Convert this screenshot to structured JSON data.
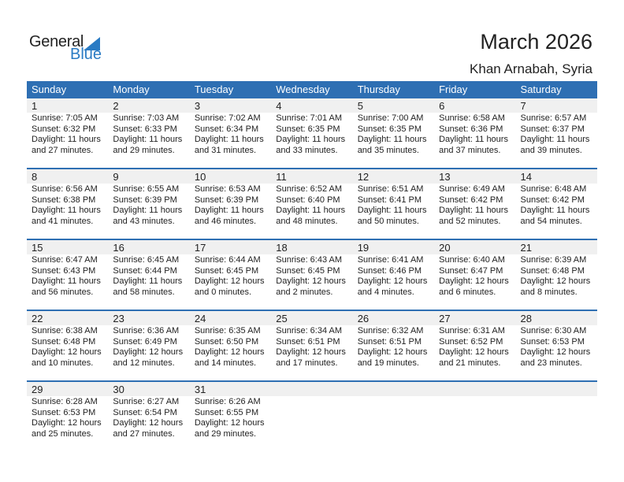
{
  "logo": {
    "general": "General",
    "blue": "Blue"
  },
  "title": "March 2026",
  "location": "Khan Arnabah, Syria",
  "colors": {
    "header": "#2e6fb3",
    "logo_blue": "#2a7bc4",
    "date_strip": "#f0f0f0"
  },
  "weekdays": [
    "Sunday",
    "Monday",
    "Tuesday",
    "Wednesday",
    "Thursday",
    "Friday",
    "Saturday"
  ],
  "days": [
    {
      "d": "1",
      "sunrise": "Sunrise: 7:05 AM",
      "sunset": "Sunset: 6:32 PM",
      "day1": "Daylight: 11 hours",
      "day2": "and 27 minutes."
    },
    {
      "d": "2",
      "sunrise": "Sunrise: 7:03 AM",
      "sunset": "Sunset: 6:33 PM",
      "day1": "Daylight: 11 hours",
      "day2": "and 29 minutes."
    },
    {
      "d": "3",
      "sunrise": "Sunrise: 7:02 AM",
      "sunset": "Sunset: 6:34 PM",
      "day1": "Daylight: 11 hours",
      "day2": "and 31 minutes."
    },
    {
      "d": "4",
      "sunrise": "Sunrise: 7:01 AM",
      "sunset": "Sunset: 6:35 PM",
      "day1": "Daylight: 11 hours",
      "day2": "and 33 minutes."
    },
    {
      "d": "5",
      "sunrise": "Sunrise: 7:00 AM",
      "sunset": "Sunset: 6:35 PM",
      "day1": "Daylight: 11 hours",
      "day2": "and 35 minutes."
    },
    {
      "d": "6",
      "sunrise": "Sunrise: 6:58 AM",
      "sunset": "Sunset: 6:36 PM",
      "day1": "Daylight: 11 hours",
      "day2": "and 37 minutes."
    },
    {
      "d": "7",
      "sunrise": "Sunrise: 6:57 AM",
      "sunset": "Sunset: 6:37 PM",
      "day1": "Daylight: 11 hours",
      "day2": "and 39 minutes."
    },
    {
      "d": "8",
      "sunrise": "Sunrise: 6:56 AM",
      "sunset": "Sunset: 6:38 PM",
      "day1": "Daylight: 11 hours",
      "day2": "and 41 minutes."
    },
    {
      "d": "9",
      "sunrise": "Sunrise: 6:55 AM",
      "sunset": "Sunset: 6:39 PM",
      "day1": "Daylight: 11 hours",
      "day2": "and 43 minutes."
    },
    {
      "d": "10",
      "sunrise": "Sunrise: 6:53 AM",
      "sunset": "Sunset: 6:39 PM",
      "day1": "Daylight: 11 hours",
      "day2": "and 46 minutes."
    },
    {
      "d": "11",
      "sunrise": "Sunrise: 6:52 AM",
      "sunset": "Sunset: 6:40 PM",
      "day1": "Daylight: 11 hours",
      "day2": "and 48 minutes."
    },
    {
      "d": "12",
      "sunrise": "Sunrise: 6:51 AM",
      "sunset": "Sunset: 6:41 PM",
      "day1": "Daylight: 11 hours",
      "day2": "and 50 minutes."
    },
    {
      "d": "13",
      "sunrise": "Sunrise: 6:49 AM",
      "sunset": "Sunset: 6:42 PM",
      "day1": "Daylight: 11 hours",
      "day2": "and 52 minutes."
    },
    {
      "d": "14",
      "sunrise": "Sunrise: 6:48 AM",
      "sunset": "Sunset: 6:42 PM",
      "day1": "Daylight: 11 hours",
      "day2": "and 54 minutes."
    },
    {
      "d": "15",
      "sunrise": "Sunrise: 6:47 AM",
      "sunset": "Sunset: 6:43 PM",
      "day1": "Daylight: 11 hours",
      "day2": "and 56 minutes."
    },
    {
      "d": "16",
      "sunrise": "Sunrise: 6:45 AM",
      "sunset": "Sunset: 6:44 PM",
      "day1": "Daylight: 11 hours",
      "day2": "and 58 minutes."
    },
    {
      "d": "17",
      "sunrise": "Sunrise: 6:44 AM",
      "sunset": "Sunset: 6:45 PM",
      "day1": "Daylight: 12 hours",
      "day2": "and 0 minutes."
    },
    {
      "d": "18",
      "sunrise": "Sunrise: 6:43 AM",
      "sunset": "Sunset: 6:45 PM",
      "day1": "Daylight: 12 hours",
      "day2": "and 2 minutes."
    },
    {
      "d": "19",
      "sunrise": "Sunrise: 6:41 AM",
      "sunset": "Sunset: 6:46 PM",
      "day1": "Daylight: 12 hours",
      "day2": "and 4 minutes."
    },
    {
      "d": "20",
      "sunrise": "Sunrise: 6:40 AM",
      "sunset": "Sunset: 6:47 PM",
      "day1": "Daylight: 12 hours",
      "day2": "and 6 minutes."
    },
    {
      "d": "21",
      "sunrise": "Sunrise: 6:39 AM",
      "sunset": "Sunset: 6:48 PM",
      "day1": "Daylight: 12 hours",
      "day2": "and 8 minutes."
    },
    {
      "d": "22",
      "sunrise": "Sunrise: 6:38 AM",
      "sunset": "Sunset: 6:48 PM",
      "day1": "Daylight: 12 hours",
      "day2": "and 10 minutes."
    },
    {
      "d": "23",
      "sunrise": "Sunrise: 6:36 AM",
      "sunset": "Sunset: 6:49 PM",
      "day1": "Daylight: 12 hours",
      "day2": "and 12 minutes."
    },
    {
      "d": "24",
      "sunrise": "Sunrise: 6:35 AM",
      "sunset": "Sunset: 6:50 PM",
      "day1": "Daylight: 12 hours",
      "day2": "and 14 minutes."
    },
    {
      "d": "25",
      "sunrise": "Sunrise: 6:34 AM",
      "sunset": "Sunset: 6:51 PM",
      "day1": "Daylight: 12 hours",
      "day2": "and 17 minutes."
    },
    {
      "d": "26",
      "sunrise": "Sunrise: 6:32 AM",
      "sunset": "Sunset: 6:51 PM",
      "day1": "Daylight: 12 hours",
      "day2": "and 19 minutes."
    },
    {
      "d": "27",
      "sunrise": "Sunrise: 6:31 AM",
      "sunset": "Sunset: 6:52 PM",
      "day1": "Daylight: 12 hours",
      "day2": "and 21 minutes."
    },
    {
      "d": "28",
      "sunrise": "Sunrise: 6:30 AM",
      "sunset": "Sunset: 6:53 PM",
      "day1": "Daylight: 12 hours",
      "day2": "and 23 minutes."
    },
    {
      "d": "29",
      "sunrise": "Sunrise: 6:28 AM",
      "sunset": "Sunset: 6:53 PM",
      "day1": "Daylight: 12 hours",
      "day2": "and 25 minutes."
    },
    {
      "d": "30",
      "sunrise": "Sunrise: 6:27 AM",
      "sunset": "Sunset: 6:54 PM",
      "day1": "Daylight: 12 hours",
      "day2": "and 27 minutes."
    },
    {
      "d": "31",
      "sunrise": "Sunrise: 6:26 AM",
      "sunset": "Sunset: 6:55 PM",
      "day1": "Daylight: 12 hours",
      "day2": "and 29 minutes."
    }
  ]
}
